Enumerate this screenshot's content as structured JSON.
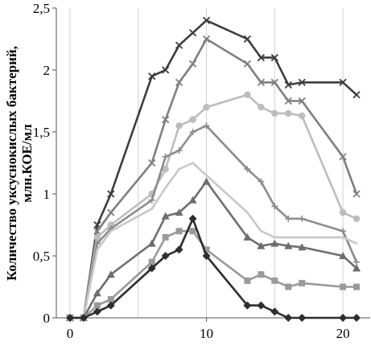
{
  "chart_data": {
    "type": "line",
    "title": "",
    "xlabel": "",
    "ylabel_line1": "Количество уксуснокислых бактерий,",
    "ylabel_line2": "млн.КОЕ/мл",
    "xlim": [
      -1,
      22
    ],
    "ylim": [
      0,
      2.5
    ],
    "xticks": [
      0,
      10,
      20
    ],
    "xtick_labels": [
      "0",
      "10",
      "20"
    ],
    "yticks": [
      0,
      0.5,
      1,
      1.5,
      2,
      2.5
    ],
    "ytick_labels": [
      "0",
      "0,5",
      "1",
      "1,5",
      "2",
      "2,5"
    ],
    "vertical_grid": true,
    "vertical_grid_at": [
      0,
      5,
      10,
      15,
      20
    ],
    "horizontal_grid": false,
    "legend": "none",
    "series": [
      {
        "color": "#3d3d3d",
        "marker": "x",
        "x": [
          0,
          1,
          2,
          3,
          6,
          7,
          8,
          9,
          10,
          13,
          14,
          15,
          16,
          17,
          20,
          21
        ],
        "y": [
          0,
          0,
          0.75,
          1.0,
          1.95,
          2.0,
          2.2,
          2.3,
          2.4,
          2.25,
          2.1,
          2.1,
          1.88,
          1.9,
          1.9,
          1.8
        ]
      },
      {
        "color": "#7f7f7f",
        "marker": "x",
        "x": [
          0,
          1,
          2,
          3,
          6,
          7,
          8,
          9,
          10,
          13,
          14,
          15,
          16,
          17,
          20,
          21
        ],
        "y": [
          0,
          0,
          0.7,
          0.85,
          1.25,
          1.6,
          1.9,
          2.05,
          2.25,
          2.05,
          1.9,
          1.9,
          1.75,
          1.75,
          1.3,
          1.0
        ]
      },
      {
        "color": "#bdbdbd",
        "marker": "circle",
        "x": [
          0,
          1,
          2,
          3,
          6,
          7,
          8,
          9,
          10,
          13,
          14,
          15,
          16,
          17,
          20,
          21
        ],
        "y": [
          0,
          0,
          0.65,
          0.75,
          1.0,
          1.2,
          1.55,
          1.6,
          1.7,
          1.8,
          1.7,
          1.65,
          1.65,
          1.63,
          0.85,
          0.8
        ]
      },
      {
        "color": "#8c8c8c",
        "marker": "plus",
        "x": [
          0,
          1,
          2,
          3,
          6,
          7,
          8,
          9,
          10,
          13,
          14,
          15,
          16,
          17,
          20,
          21
        ],
        "y": [
          0,
          0,
          0.6,
          0.72,
          0.95,
          1.3,
          1.35,
          1.5,
          1.55,
          1.2,
          1.1,
          0.9,
          0.8,
          0.8,
          0.7,
          0.45
        ]
      },
      {
        "color": "#c8c8c8",
        "marker": "none",
        "x": [
          0,
          1,
          2,
          3,
          6,
          7,
          8,
          9,
          10,
          13,
          14,
          15,
          16,
          17,
          20,
          21
        ],
        "y": [
          0,
          0,
          0.55,
          0.7,
          0.88,
          1.05,
          1.2,
          1.25,
          1.15,
          0.85,
          0.7,
          0.65,
          0.65,
          0.65,
          0.65,
          0.6
        ]
      },
      {
        "color": "#6e6e6e",
        "marker": "triangle",
        "x": [
          0,
          1,
          2,
          3,
          6,
          7,
          8,
          9,
          10,
          13,
          14,
          15,
          16,
          17,
          20,
          21
        ],
        "y": [
          0,
          0,
          0.2,
          0.35,
          0.6,
          0.82,
          0.85,
          0.95,
          1.1,
          0.65,
          0.58,
          0.6,
          0.58,
          0.57,
          0.5,
          0.4
        ]
      },
      {
        "color": "#9a9a9a",
        "marker": "square",
        "x": [
          0,
          1,
          2,
          3,
          6,
          7,
          8,
          9,
          10,
          13,
          14,
          15,
          16,
          17,
          20,
          21
        ],
        "y": [
          0,
          0,
          0.1,
          0.15,
          0.45,
          0.65,
          0.7,
          0.7,
          0.55,
          0.3,
          0.35,
          0.3,
          0.25,
          0.28,
          0.25,
          0.25
        ]
      },
      {
        "color": "#2e2e2e",
        "marker": "diamond",
        "x": [
          0,
          1,
          2,
          3,
          6,
          7,
          8,
          9,
          10,
          13,
          14,
          15,
          16,
          17,
          20,
          21
        ],
        "y": [
          0,
          0,
          0.05,
          0.1,
          0.4,
          0.5,
          0.55,
          0.8,
          0.5,
          0.1,
          0.1,
          0.05,
          0.0,
          0.0,
          0.0,
          0.0
        ]
      }
    ]
  }
}
